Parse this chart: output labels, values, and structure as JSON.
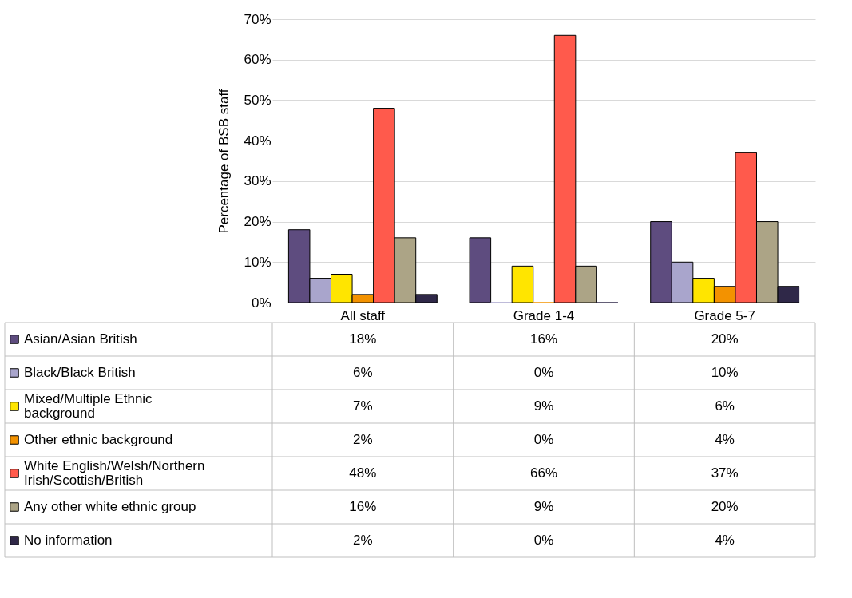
{
  "chart_data": {
    "type": "bar",
    "ylabel": "Percentage of BSB staff",
    "categories": [
      "All staff",
      "Grade 1-4",
      "Grade 5-7"
    ],
    "ylim": [
      0,
      70
    ],
    "yticks": [
      {
        "value": 0,
        "label": "0%"
      },
      {
        "value": 10,
        "label": "10%"
      },
      {
        "value": 20,
        "label": "20%"
      },
      {
        "value": 30,
        "label": "30%"
      },
      {
        "value": 40,
        "label": "40%"
      },
      {
        "value": 50,
        "label": "50%"
      },
      {
        "value": 60,
        "label": "60%"
      },
      {
        "value": 70,
        "label": "70%"
      }
    ],
    "grid": "y",
    "legend": "bottom",
    "series": [
      {
        "name": "Asian/Asian British",
        "color": "#5e4c7f",
        "values": [
          18,
          16,
          20
        ],
        "value_labels": [
          "18%",
          "16%",
          "20%"
        ]
      },
      {
        "name": "Black/Black British",
        "color": "#a9a5cc",
        "values": [
          6,
          0,
          10
        ],
        "value_labels": [
          "6%",
          "0%",
          "10%"
        ]
      },
      {
        "name": "Mixed/Multiple Ethnic background",
        "color": "#ffe500",
        "values": [
          7,
          9,
          6
        ],
        "value_labels": [
          "7%",
          "9%",
          "6%"
        ]
      },
      {
        "name": "Other ethnic background",
        "color": "#f39200",
        "values": [
          2,
          0,
          4
        ],
        "value_labels": [
          "2%",
          "0%",
          "4%"
        ]
      },
      {
        "name": "White English/Welsh/Northern Irish/Scottish/British",
        "color": "#ff5a4c",
        "values": [
          48,
          66,
          37
        ],
        "value_labels": [
          "48%",
          "66%",
          "37%"
        ]
      },
      {
        "name": "Any other white ethnic group",
        "color": "#aca486",
        "values": [
          16,
          9,
          20
        ],
        "value_labels": [
          "16%",
          "9%",
          "20%"
        ]
      },
      {
        "name": "No information",
        "color": "#2f2848",
        "values": [
          2,
          0,
          4
        ],
        "value_labels": [
          "2%",
          "0%",
          "4%"
        ]
      }
    ]
  }
}
